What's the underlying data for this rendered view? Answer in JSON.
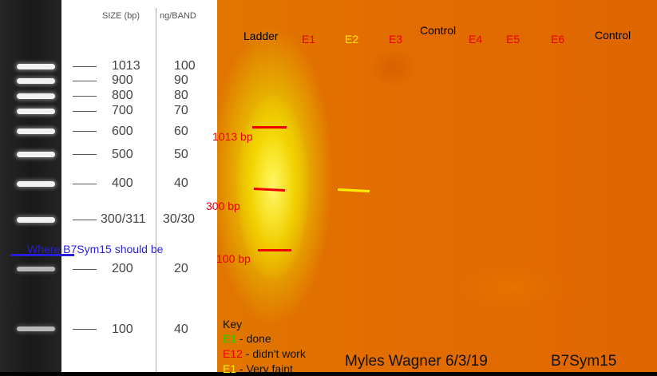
{
  "reference_ladder": {
    "size_header": "SIZE (bp)",
    "ng_header": "ng/BAND",
    "bands": [
      {
        "size": "1013",
        "ng": "100"
      },
      {
        "size": "900",
        "ng": "90"
      },
      {
        "size": "800",
        "ng": "80"
      },
      {
        "size": "700",
        "ng": "70"
      },
      {
        "size": "600",
        "ng": "60"
      },
      {
        "size": "500",
        "ng": "50"
      },
      {
        "size": "400",
        "ng": "40"
      },
      {
        "size": "300/311",
        "ng": "30/30"
      },
      {
        "size": "200",
        "ng": "20"
      },
      {
        "size": "100",
        "ng": "40"
      }
    ],
    "where_note": "Where B7Sym15 should be"
  },
  "gel": {
    "lane_labels": [
      {
        "text": "Ladder",
        "color": "#000000"
      },
      {
        "text": "E1",
        "color": "#e80000"
      },
      {
        "text": "E2",
        "color": "#ffee00"
      },
      {
        "text": "E3",
        "color": "#e80000"
      },
      {
        "text": "Control",
        "color": "#000000"
      },
      {
        "text": "E4",
        "color": "#e80000"
      },
      {
        "text": "E5",
        "color": "#e80000"
      },
      {
        "text": "E6",
        "color": "#e80000"
      },
      {
        "text": "Control",
        "color": "#000000"
      }
    ],
    "bp_markers": [
      "1013 bp",
      "300 bp",
      "100 bp"
    ],
    "key_title": "Key",
    "key": [
      {
        "code": "E1",
        "code_color": "#22cc00",
        "desc": " - done"
      },
      {
        "code": "E12",
        "code_color": "#ee0000",
        "desc": " - didn't work"
      },
      {
        "code": "E1",
        "code_color": "#ffee00",
        "desc": " - Very faint"
      }
    ],
    "author": "Myles Wagner 6/3/19",
    "sample": "B7Sym15"
  },
  "colors": {
    "marker_red": "#ee0000",
    "e2_band_yellow": "#ffee00",
    "note_blue": "#2a1fd6"
  }
}
